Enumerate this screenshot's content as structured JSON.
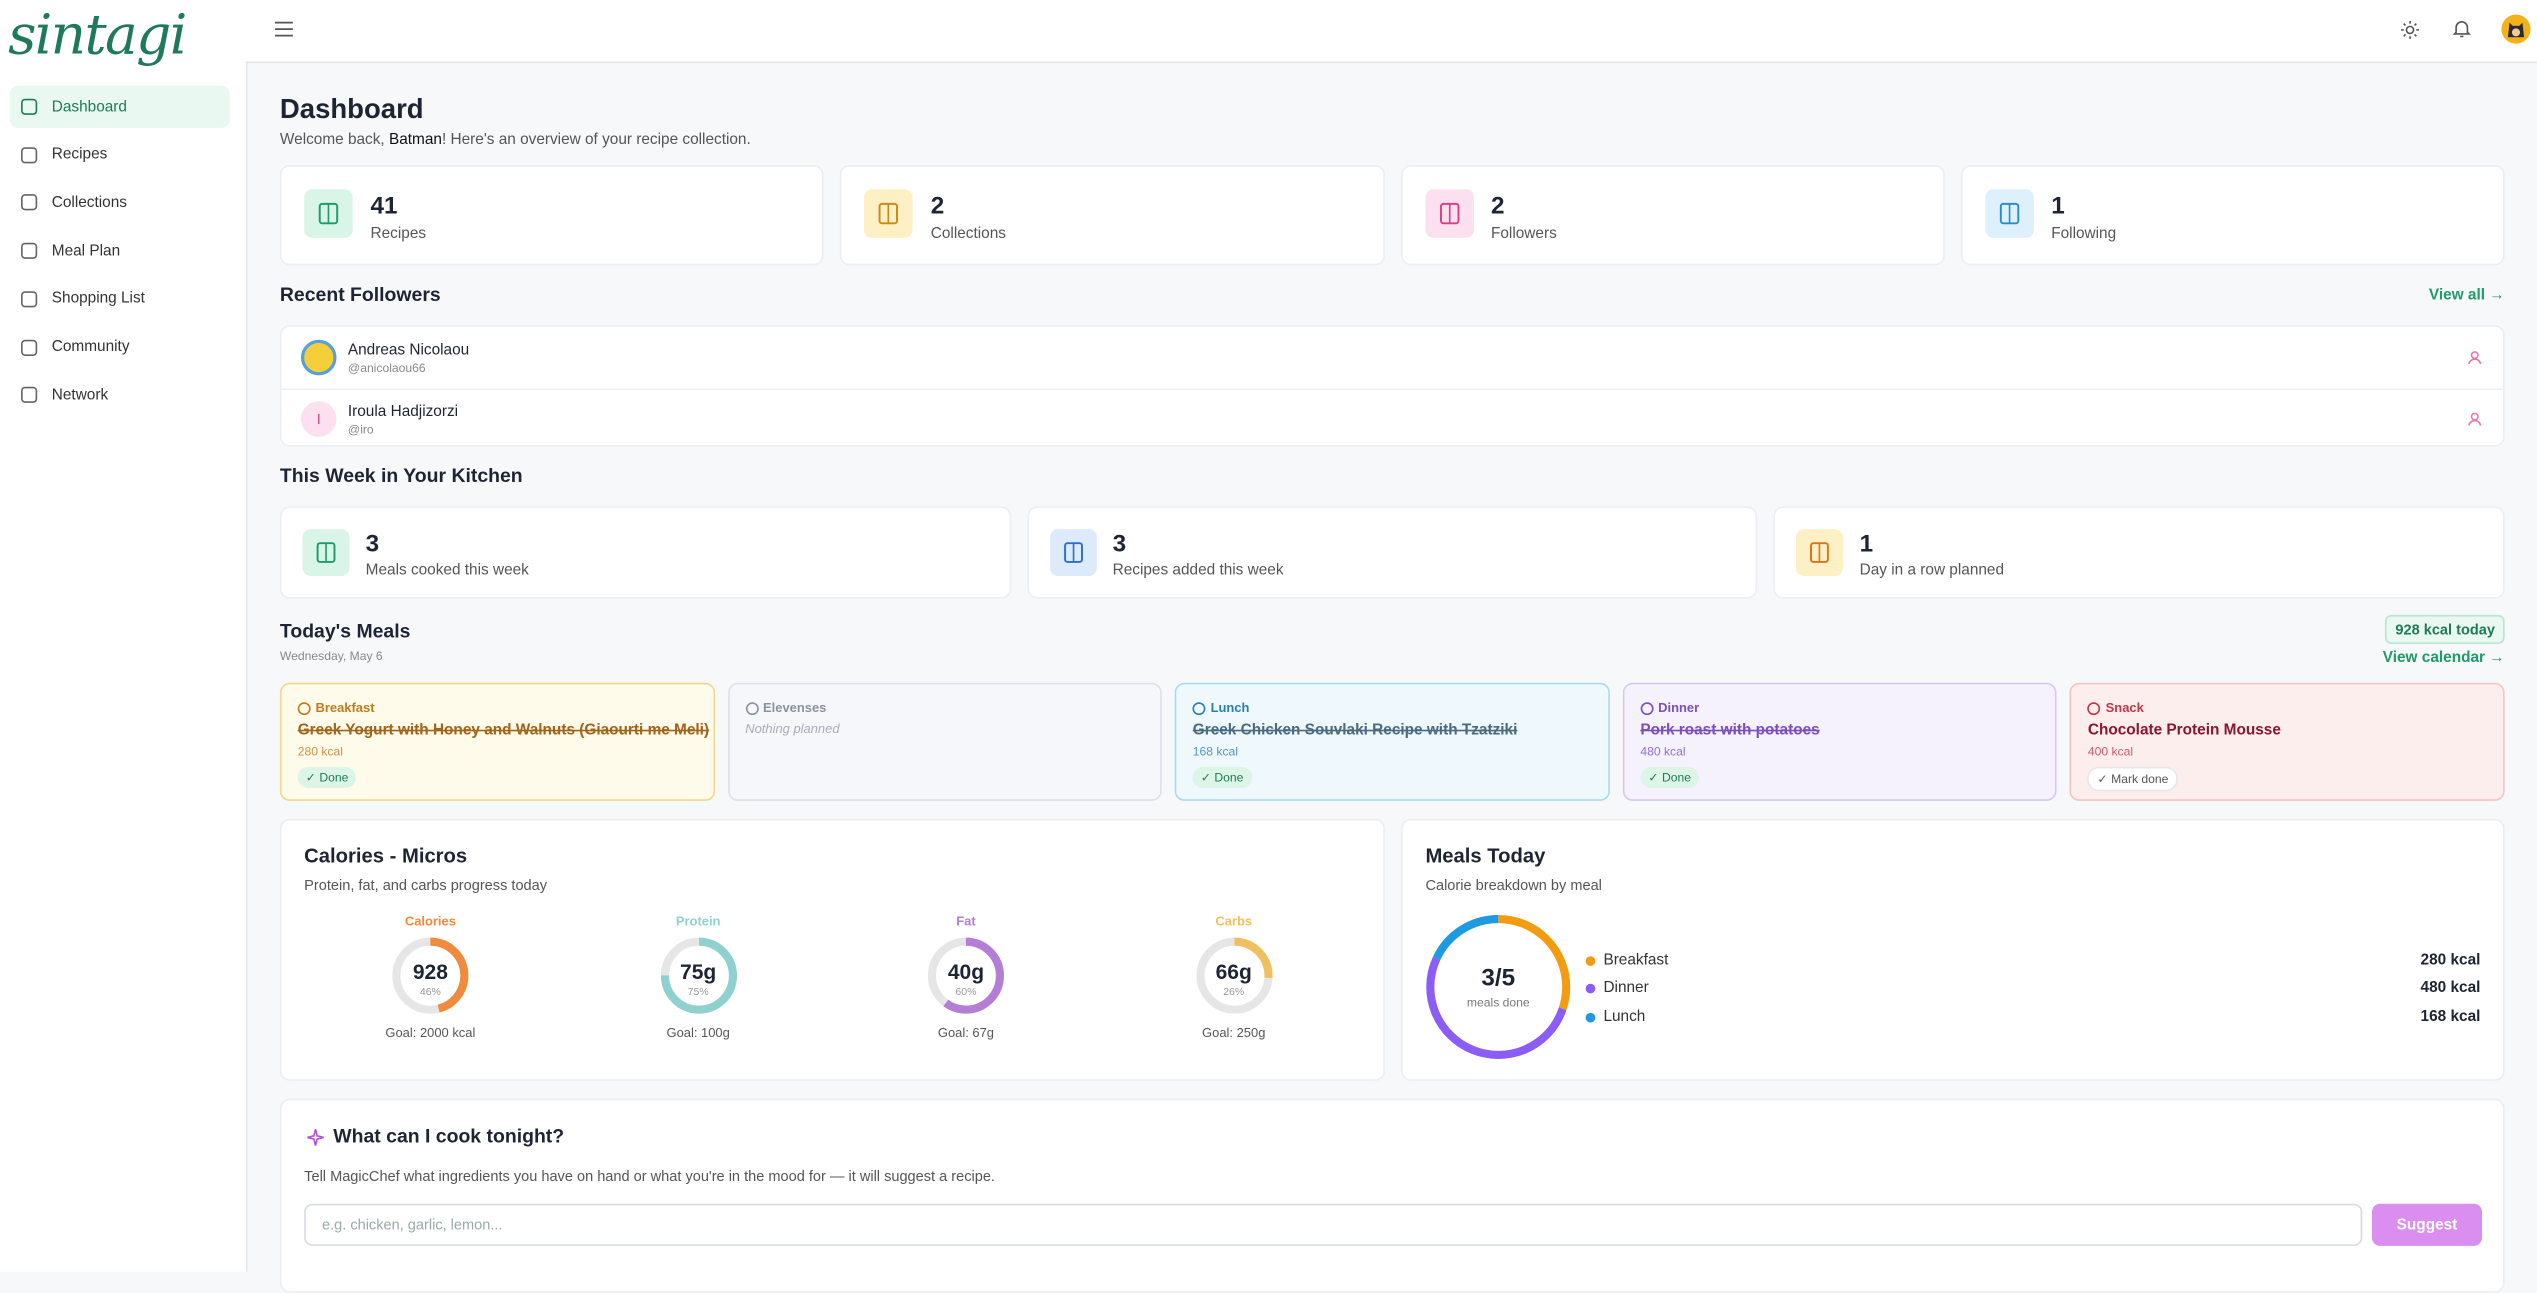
{
  "brand": "sintagi",
  "nav": [
    {
      "label": "Dashboard",
      "active": true
    },
    {
      "label": "Recipes"
    },
    {
      "label": "Collections"
    },
    {
      "label": "Meal Plan"
    },
    {
      "label": "Shopping List"
    },
    {
      "label": "Community"
    },
    {
      "label": "Network"
    }
  ],
  "page": {
    "title": "Dashboard",
    "welcome_pre": "Welcome back, ",
    "user": "Batman",
    "welcome_post": "! Here's an overview of your recipe collection."
  },
  "stats": [
    {
      "value": "41",
      "label": "Recipes",
      "bg": "#d9f5e8",
      "fg": "#1f9a6a"
    },
    {
      "value": "2",
      "label": "Collections",
      "bg": "#fdf0c4",
      "fg": "#c98a12"
    },
    {
      "value": "2",
      "label": "Followers",
      "bg": "#fde0ef",
      "fg": "#d6408a"
    },
    {
      "value": "1",
      "label": "Following",
      "bg": "#ddf0fb",
      "fg": "#2a8fc8"
    }
  ],
  "followers": {
    "title": "Recent Followers",
    "view_all": "View all →",
    "items": [
      {
        "name": "Andreas Nicolaou",
        "handle": "@anicolaou66"
      },
      {
        "name": "Iroula Hadjizorzi",
        "handle": "@iro",
        "initial": "I"
      }
    ]
  },
  "week": {
    "title": "This Week in Your Kitchen",
    "items": [
      {
        "value": "3",
        "label": "Meals cooked this week",
        "bg": "#d9f5e8",
        "fg": "#1f9a6a"
      },
      {
        "value": "3",
        "label": "Recipes added this week",
        "bg": "#ddeafb",
        "fg": "#2a6fc8"
      },
      {
        "value": "1",
        "label": "Day in a row planned",
        "bg": "#fdf0c4",
        "fg": "#d9741a"
      }
    ]
  },
  "meals": {
    "title": "Today's Meals",
    "date": "Wednesday, May 6",
    "badge": "928 kcal today",
    "calendar": "View calendar →",
    "items": [
      {
        "type": "Breakfast",
        "name": "Greek Yogurt with Honey and Walnuts (Giaourti me Meli)",
        "kcal": "280 kcal",
        "status": "✓ Done",
        "done": true,
        "bg": "#fefbea",
        "border": "#f0d98c",
        "fg": "#c27a1a",
        "namecolor": "#a0641a"
      },
      {
        "type": "Elevenses",
        "empty": "Nothing planned",
        "bg": "#f5f7fa",
        "border": "#dde2e8",
        "fg": "#8a939e"
      },
      {
        "type": "Lunch",
        "name": "Greek Chicken Souvlaki Recipe with Tzatziki",
        "kcal": "168 kcal",
        "status": "✓ Done",
        "done": true,
        "bg": "#eef8fd",
        "border": "#a9dcf0",
        "fg": "#2a7fb0",
        "namecolor": "#4b6a80"
      },
      {
        "type": "Dinner",
        "name": "Pork roast with potatoes",
        "kcal": "480 kcal",
        "status": "✓ Done",
        "done": true,
        "bg": "#f5f1fd",
        "border": "#d8c8f2",
        "fg": "#7b4fc0",
        "namecolor": "#7b4fc0"
      },
      {
        "type": "Snack",
        "name": "Chocolate Protein Mousse",
        "kcal": "400 kcal",
        "status": "✓ Mark done",
        "done": false,
        "bg": "#fdeeee",
        "border": "#f5c4c4",
        "fg": "#c0364a",
        "namecolor": "#8a1530"
      }
    ]
  },
  "micros": {
    "title": "Calories - Micros",
    "subtitle": "Protein, fat, and carbs progress today",
    "items": [
      {
        "name": "Calories",
        "value": "928",
        "pct": 46,
        "pct_label": "46%",
        "goal": "Goal: 2000 kcal",
        "color": "#f08a3c"
      },
      {
        "name": "Protein",
        "value": "75g",
        "pct": 75,
        "pct_label": "75%",
        "goal": "Goal: 100g",
        "color": "#8fd1cf"
      },
      {
        "name": "Fat",
        "value": "40g",
        "pct": 60,
        "pct_label": "60%",
        "goal": "Goal: 67g",
        "color": "#b57ed6"
      },
      {
        "name": "Carbs",
        "value": "66g",
        "pct": 26,
        "pct_label": "26%",
        "goal": "Goal: 250g",
        "color": "#f0c060"
      }
    ]
  },
  "meals_today": {
    "title": "Meals Today",
    "subtitle": "Calorie breakdown by meal",
    "center": "3/5",
    "center_sub": "meals done",
    "items": [
      {
        "name": "Breakfast",
        "kcal": 280,
        "label": "280 kcal",
        "color": "#f39c12"
      },
      {
        "name": "Dinner",
        "kcal": 480,
        "label": "480 kcal",
        "color": "#8b5cf6"
      },
      {
        "name": "Lunch",
        "kcal": 168,
        "label": "168 kcal",
        "color": "#1e9be0"
      }
    ]
  },
  "magic": {
    "title": "What can I cook tonight?",
    "text": "Tell MagicChef what ingredients you have on hand or what you're in the mood for — it will suggest a recipe.",
    "placeholder": "e.g. chicken, garlic, lemon...",
    "button": "Suggest"
  }
}
